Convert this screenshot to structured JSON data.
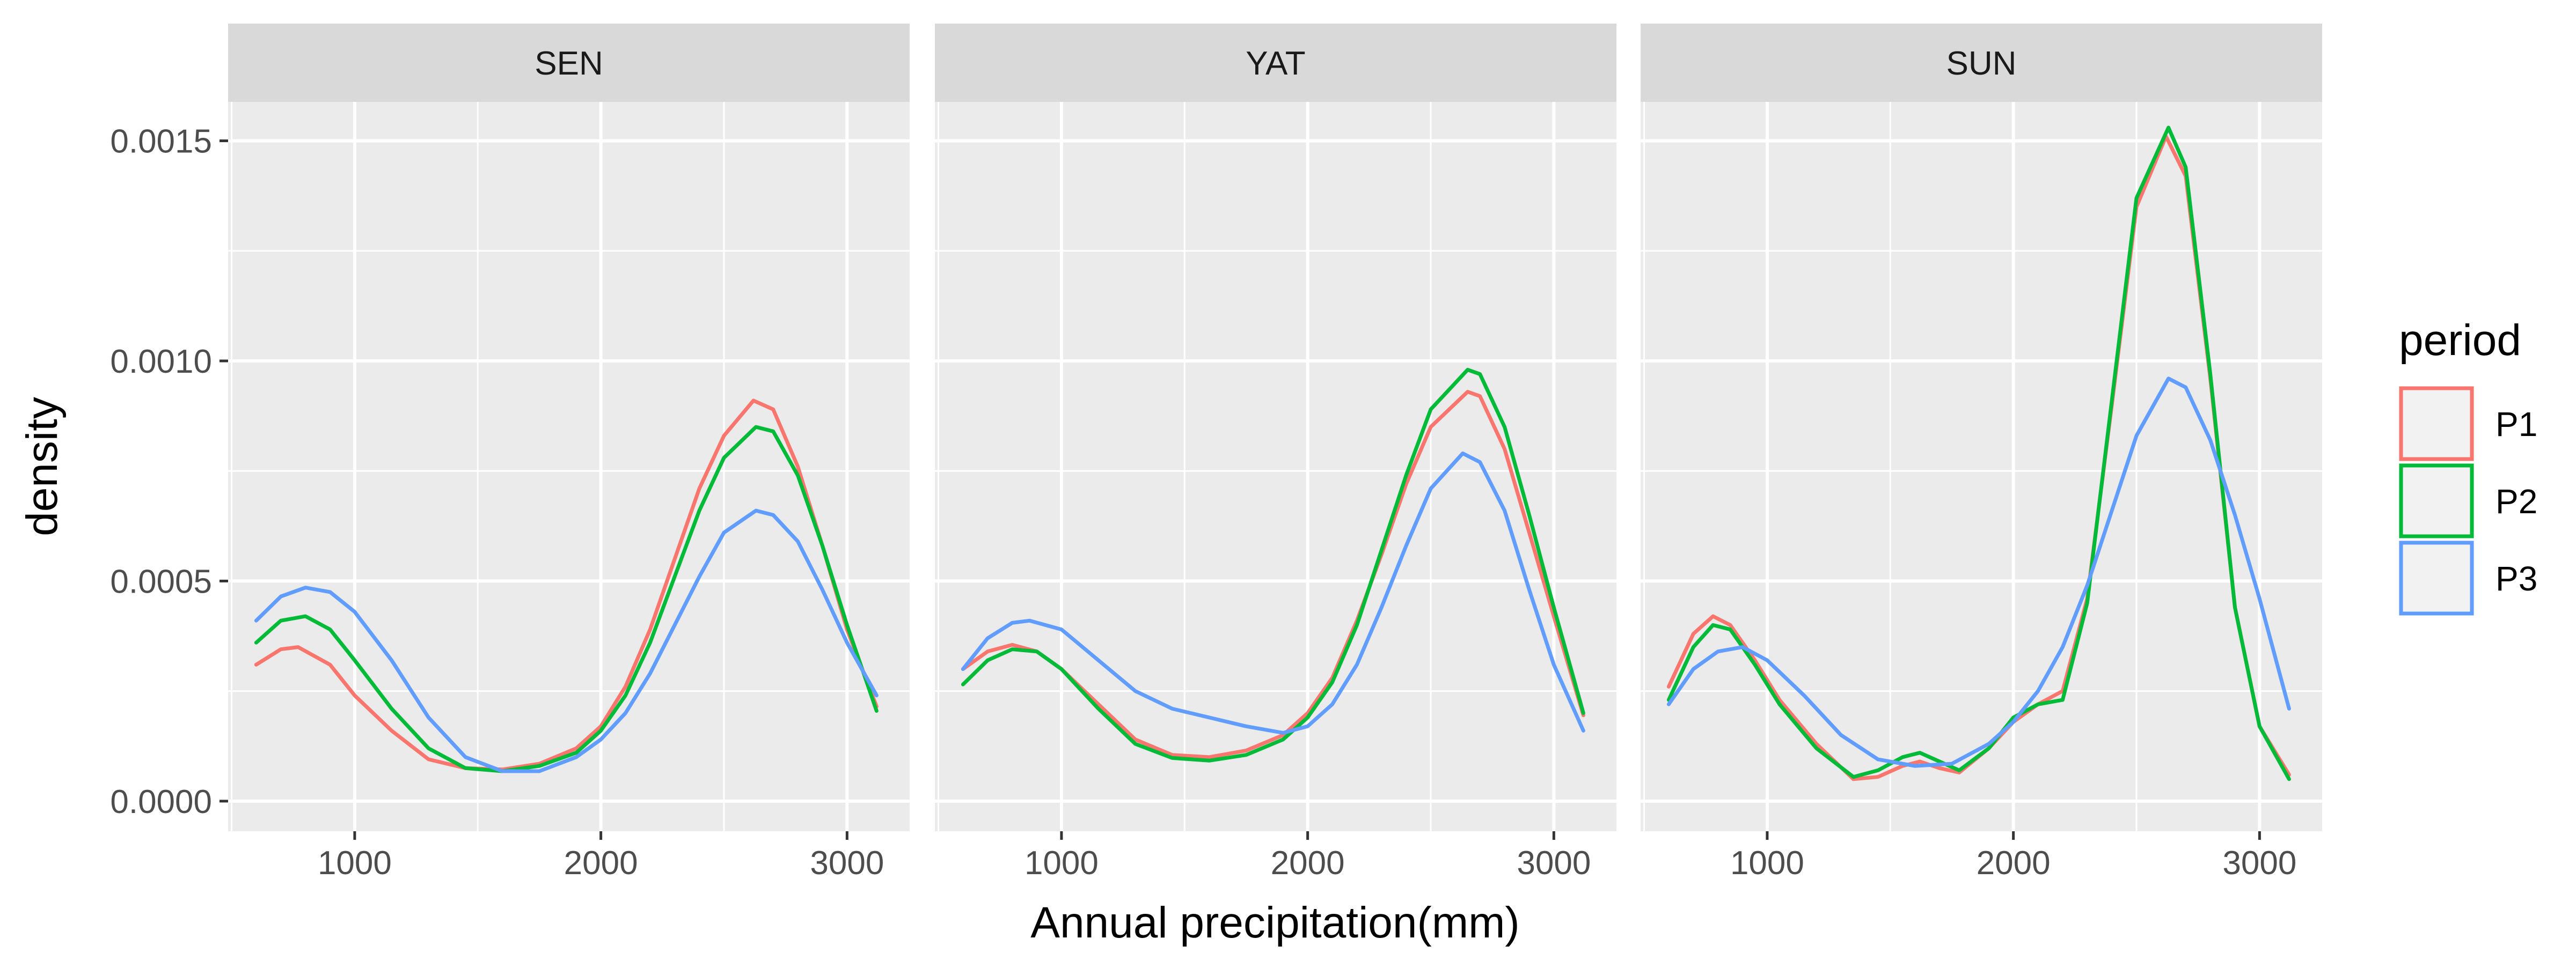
{
  "chart_data": {
    "type": "line",
    "chart_kind": "faceted density plot",
    "xlabel": "Annual precipitation(mm)",
    "ylabel": "density",
    "xlim": [
      600,
      3140
    ],
    "ylim": [
      0,
      0.00152
    ],
    "x_ticks": [
      1000,
      2000,
      3000
    ],
    "x_tick_labels": [
      "1000",
      "2000",
      "3000"
    ],
    "y_ticks": [
      0,
      0.0005,
      0.001,
      0.0015
    ],
    "y_tick_labels": [
      "0.0000",
      "0.0005",
      "0.0010",
      "0.0015"
    ],
    "grid": true,
    "legend": {
      "title": "period",
      "position": "right",
      "entries": [
        "P1",
        "P2",
        "P3"
      ]
    },
    "colors": {
      "P1": "#F8766D",
      "P2": "#00BA38",
      "P3": "#619CFF"
    },
    "facets": [
      {
        "name": "SEN",
        "series": [
          {
            "name": "P1",
            "points": [
              [
                600,
                0.00031
              ],
              [
                700,
                0.000345
              ],
              [
                770,
                0.00035
              ],
              [
                900,
                0.00031
              ],
              [
                1000,
                0.00024
              ],
              [
                1150,
                0.00016
              ],
              [
                1300,
                9.5e-05
              ],
              [
                1450,
                7.5e-05
              ],
              [
                1600,
                7.2e-05
              ],
              [
                1750,
                8.5e-05
              ],
              [
                1900,
                0.00012
              ],
              [
                2000,
                0.00017
              ],
              [
                2100,
                0.00026
              ],
              [
                2200,
                0.00039
              ],
              [
                2300,
                0.00055
              ],
              [
                2400,
                0.00071
              ],
              [
                2500,
                0.00083
              ],
              [
                2620,
                0.00091
              ],
              [
                2700,
                0.00089
              ],
              [
                2800,
                0.00076
              ],
              [
                2900,
                0.00058
              ],
              [
                3000,
                0.00039
              ],
              [
                3120,
                0.000215
              ]
            ]
          },
          {
            "name": "P2",
            "points": [
              [
                600,
                0.00036
              ],
              [
                700,
                0.00041
              ],
              [
                800,
                0.00042
              ],
              [
                900,
                0.00039
              ],
              [
                1000,
                0.00032
              ],
              [
                1150,
                0.00021
              ],
              [
                1300,
                0.00012
              ],
              [
                1450,
                7.5e-05
              ],
              [
                1600,
                6.8e-05
              ],
              [
                1750,
                8e-05
              ],
              [
                1900,
                0.00011
              ],
              [
                2000,
                0.00016
              ],
              [
                2100,
                0.00024
              ],
              [
                2200,
                0.00036
              ],
              [
                2300,
                0.00051
              ],
              [
                2400,
                0.00066
              ],
              [
                2500,
                0.00078
              ],
              [
                2630,
                0.00085
              ],
              [
                2700,
                0.00084
              ],
              [
                2800,
                0.00074
              ],
              [
                2900,
                0.00058
              ],
              [
                3000,
                0.0004
              ],
              [
                3120,
                0.000205
              ]
            ]
          },
          {
            "name": "P3",
            "points": [
              [
                600,
                0.00041
              ],
              [
                700,
                0.000465
              ],
              [
                800,
                0.000485
              ],
              [
                900,
                0.000475
              ],
              [
                1000,
                0.00043
              ],
              [
                1150,
                0.00032
              ],
              [
                1300,
                0.00019
              ],
              [
                1450,
                0.0001
              ],
              [
                1600,
                6.8e-05
              ],
              [
                1750,
                6.8e-05
              ],
              [
                1900,
                0.0001
              ],
              [
                2000,
                0.00014
              ],
              [
                2100,
                0.0002
              ],
              [
                2200,
                0.00029
              ],
              [
                2300,
                0.0004
              ],
              [
                2400,
                0.00051
              ],
              [
                2500,
                0.00061
              ],
              [
                2630,
                0.00066
              ],
              [
                2700,
                0.00065
              ],
              [
                2800,
                0.00059
              ],
              [
                2900,
                0.00048
              ],
              [
                3000,
                0.00036
              ],
              [
                3120,
                0.00024
              ]
            ]
          }
        ]
      },
      {
        "name": "YAT",
        "series": [
          {
            "name": "P1",
            "points": [
              [
                600,
                0.0003
              ],
              [
                700,
                0.00034
              ],
              [
                800,
                0.000355
              ],
              [
                900,
                0.00034
              ],
              [
                1000,
                0.0003
              ],
              [
                1150,
                0.00022
              ],
              [
                1300,
                0.00014
              ],
              [
                1450,
                0.000105
              ],
              [
                1600,
                0.0001
              ],
              [
                1750,
                0.000115
              ],
              [
                1900,
                0.00015
              ],
              [
                2000,
                0.0002
              ],
              [
                2100,
                0.00028
              ],
              [
                2200,
                0.00041
              ],
              [
                2300,
                0.00056
              ],
              [
                2400,
                0.00072
              ],
              [
                2500,
                0.00085
              ],
              [
                2650,
                0.00093
              ],
              [
                2700,
                0.00092
              ],
              [
                2800,
                0.0008
              ],
              [
                2900,
                0.00061
              ],
              [
                3000,
                0.00042
              ],
              [
                3120,
                0.000195
              ]
            ]
          },
          {
            "name": "P2",
            "points": [
              [
                600,
                0.000265
              ],
              [
                700,
                0.00032
              ],
              [
                800,
                0.000345
              ],
              [
                900,
                0.00034
              ],
              [
                1000,
                0.0003
              ],
              [
                1150,
                0.00021
              ],
              [
                1300,
                0.00013
              ],
              [
                1450,
                9.8e-05
              ],
              [
                1600,
                9.2e-05
              ],
              [
                1750,
                0.000105
              ],
              [
                1900,
                0.00014
              ],
              [
                2000,
                0.00019
              ],
              [
                2100,
                0.00027
              ],
              [
                2200,
                0.0004
              ],
              [
                2300,
                0.00057
              ],
              [
                2400,
                0.00074
              ],
              [
                2500,
                0.00089
              ],
              [
                2650,
                0.00098
              ],
              [
                2700,
                0.00097
              ],
              [
                2800,
                0.00085
              ],
              [
                2900,
                0.00065
              ],
              [
                3000,
                0.00044
              ],
              [
                3120,
                0.0002
              ]
            ]
          },
          {
            "name": "P3",
            "points": [
              [
                600,
                0.0003
              ],
              [
                700,
                0.00037
              ],
              [
                800,
                0.000405
              ],
              [
                870,
                0.00041
              ],
              [
                1000,
                0.00039
              ],
              [
                1150,
                0.00032
              ],
              [
                1300,
                0.00025
              ],
              [
                1450,
                0.00021
              ],
              [
                1600,
                0.00019
              ],
              [
                1750,
                0.00017
              ],
              [
                1900,
                0.000155
              ],
              [
                2000,
                0.00017
              ],
              [
                2100,
                0.00022
              ],
              [
                2200,
                0.00031
              ],
              [
                2300,
                0.00044
              ],
              [
                2400,
                0.00058
              ],
              [
                2500,
                0.00071
              ],
              [
                2630,
                0.00079
              ],
              [
                2700,
                0.00077
              ],
              [
                2800,
                0.00066
              ],
              [
                2900,
                0.00048
              ],
              [
                3000,
                0.00031
              ],
              [
                3120,
                0.00016
              ]
            ]
          }
        ]
      },
      {
        "name": "SUN",
        "series": [
          {
            "name": "P1",
            "points": [
              [
                600,
                0.00026
              ],
              [
                700,
                0.00038
              ],
              [
                780,
                0.00042
              ],
              [
                850,
                0.0004
              ],
              [
                950,
                0.00032
              ],
              [
                1050,
                0.00023
              ],
              [
                1200,
                0.00013
              ],
              [
                1350,
                5e-05
              ],
              [
                1450,
                5.5e-05
              ],
              [
                1550,
                8e-05
              ],
              [
                1620,
                9e-05
              ],
              [
                1700,
                7.5e-05
              ],
              [
                1780,
                6.5e-05
              ],
              [
                1900,
                0.00012
              ],
              [
                2000,
                0.00018
              ],
              [
                2100,
                0.00022
              ],
              [
                2200,
                0.00025
              ],
              [
                2300,
                0.00046
              ],
              [
                2400,
                0.0009
              ],
              [
                2500,
                0.00135
              ],
              [
                2620,
                0.00151
              ],
              [
                2700,
                0.00142
              ],
              [
                2800,
                0.00096
              ],
              [
                2900,
                0.00044
              ],
              [
                3000,
                0.00017
              ],
              [
                3120,
                6e-05
              ]
            ]
          },
          {
            "name": "P2",
            "points": [
              [
                600,
                0.00023
              ],
              [
                700,
                0.00035
              ],
              [
                780,
                0.0004
              ],
              [
                850,
                0.00039
              ],
              [
                950,
                0.00031
              ],
              [
                1050,
                0.00022
              ],
              [
                1200,
                0.00012
              ],
              [
                1350,
                5.5e-05
              ],
              [
                1450,
                7e-05
              ],
              [
                1550,
                0.0001
              ],
              [
                1620,
                0.00011
              ],
              [
                1700,
                9e-05
              ],
              [
                1780,
                7e-05
              ],
              [
                1900,
                0.00012
              ],
              [
                2000,
                0.00019
              ],
              [
                2100,
                0.00022
              ],
              [
                2200,
                0.00023
              ],
              [
                2300,
                0.00045
              ],
              [
                2400,
                0.00091
              ],
              [
                2500,
                0.00137
              ],
              [
                2630,
                0.00153
              ],
              [
                2700,
                0.00144
              ],
              [
                2800,
                0.00097
              ],
              [
                2900,
                0.00044
              ],
              [
                3000,
                0.00017
              ],
              [
                3120,
                5e-05
              ]
            ]
          },
          {
            "name": "P3",
            "points": [
              [
                600,
                0.00022
              ],
              [
                700,
                0.0003
              ],
              [
                800,
                0.00034
              ],
              [
                900,
                0.00035
              ],
              [
                1000,
                0.00032
              ],
              [
                1150,
                0.00024
              ],
              [
                1300,
                0.00015
              ],
              [
                1450,
                9.5e-05
              ],
              [
                1600,
                8e-05
              ],
              [
                1750,
                8.5e-05
              ],
              [
                1900,
                0.00013
              ],
              [
                2000,
                0.00018
              ],
              [
                2100,
                0.00025
              ],
              [
                2200,
                0.00035
              ],
              [
                2300,
                0.00049
              ],
              [
                2400,
                0.00066
              ],
              [
                2500,
                0.00083
              ],
              [
                2630,
                0.00096
              ],
              [
                2700,
                0.00094
              ],
              [
                2800,
                0.00082
              ],
              [
                2900,
                0.00065
              ],
              [
                3000,
                0.00046
              ],
              [
                3120,
                0.00021
              ]
            ]
          }
        ]
      }
    ]
  }
}
